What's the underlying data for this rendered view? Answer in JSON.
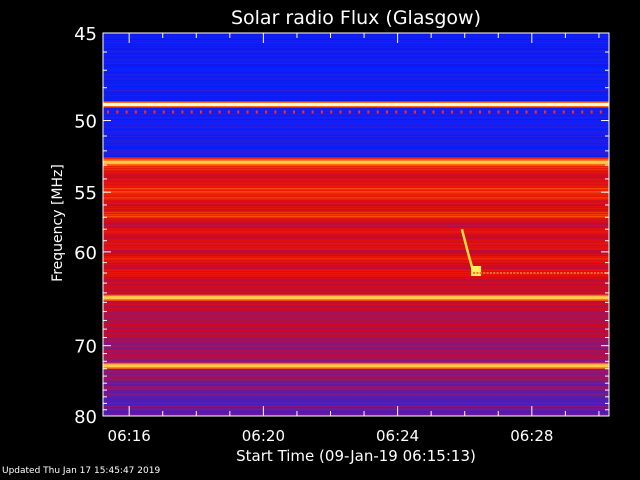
{
  "chart_data": {
    "type": "heatmap",
    "title": "Solar radio Flux (Glasgow)",
    "xlabel": "Start Time (09-Jan-19 06:15:13)",
    "ylabel": "Frequency [MHz]",
    "x_ticks": [
      {
        "label": "06:16",
        "minutes": 16
      },
      {
        "label": "06:20",
        "minutes": 20
      },
      {
        "label": "06:24",
        "minutes": 24
      },
      {
        "label": "06:28",
        "minutes": 28
      }
    ],
    "x_range_minutes": [
      15.22,
      30.3
    ],
    "y_ticks": [
      45,
      50,
      55,
      60,
      70,
      80
    ],
    "y_range": [
      45,
      80
    ],
    "y_scale": "reciprocal",
    "colormap": "blue-red-yellow-white",
    "background": "#000000",
    "bright_bands_mhz": [
      49.0,
      52.8,
      64.5,
      72.6
    ],
    "burst": {
      "start_time": "06:25:55",
      "end_time": "06:26:15",
      "start_freq_mhz": 58.0,
      "end_freq_mhz": 61.8
    }
  },
  "footer": {
    "updated": "Updated Thu Jan 17 15:45:47 2019"
  }
}
